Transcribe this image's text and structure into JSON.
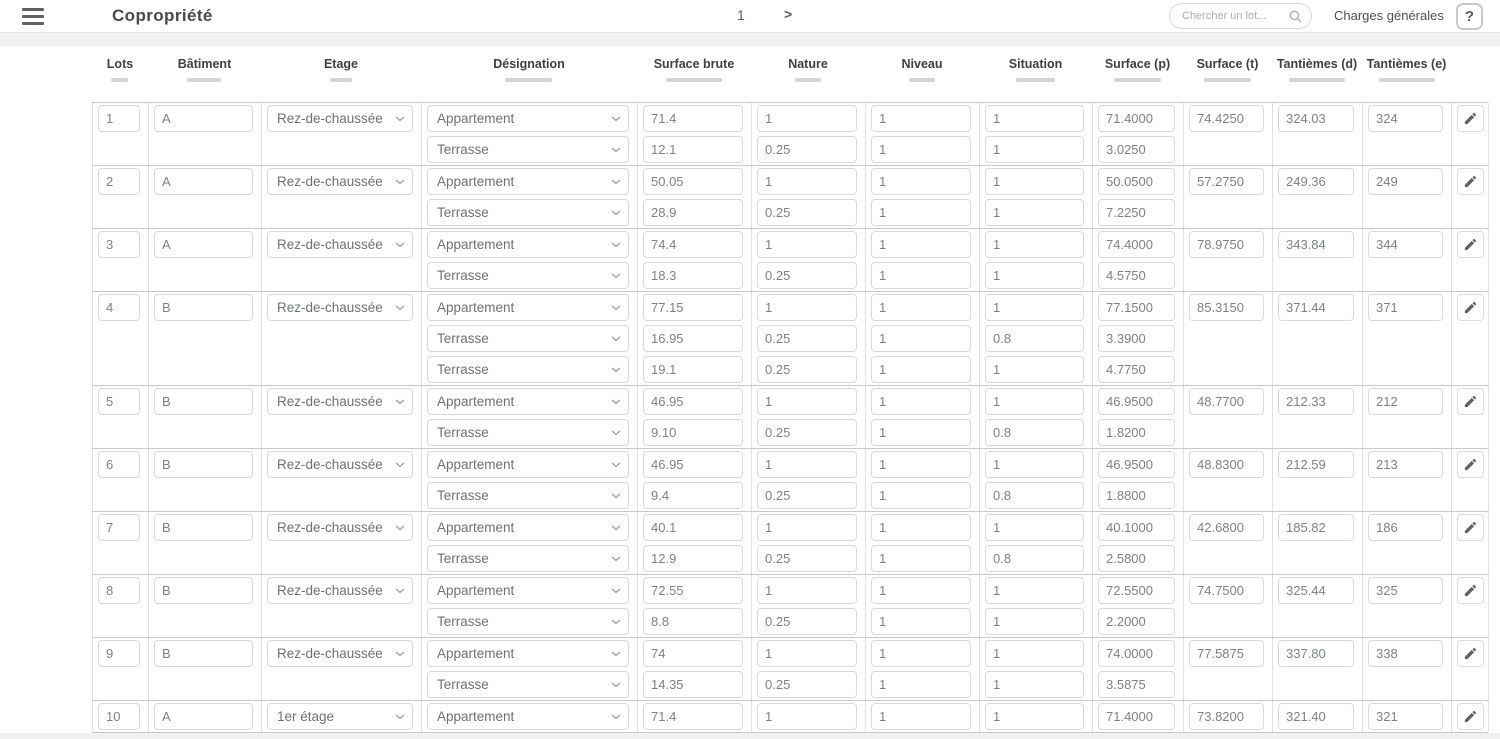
{
  "toolbar": {
    "title": "Copropriété",
    "page_number": "1",
    "next_page_label": ">",
    "search_placeholder": "Chercher un lot...",
    "charges_label": "Charges générales",
    "help_label": "?"
  },
  "table": {
    "headers": [
      {
        "label": "Lots"
      },
      {
        "label": "Bâtiment"
      },
      {
        "label": "Etage"
      },
      {
        "label": "Désignation"
      },
      {
        "label": "Surface brute"
      },
      {
        "label": "Nature"
      },
      {
        "label": "Niveau"
      },
      {
        "label": "Situation"
      },
      {
        "label": "Surface (p)"
      },
      {
        "label": "Surface (t)"
      },
      {
        "label": "Tantièmes (d)"
      },
      {
        "label": "Tantièmes (e)"
      }
    ],
    "rows": [
      {
        "lot": "1",
        "batiment": "A",
        "etage": "Rez-de-chaussée",
        "surface_t": "74.4250",
        "tantiemes_d": "324.03",
        "tantiemes_e": "324",
        "subrows": [
          {
            "designation": "Appartement",
            "surface_brute": "71.4",
            "nature": "1",
            "niveau": "1",
            "situation": "1",
            "surface_p": "71.4000"
          },
          {
            "designation": "Terrasse",
            "surface_brute": "12.1",
            "nature": "0.25",
            "niveau": "1",
            "situation": "1",
            "surface_p": "3.0250"
          }
        ]
      },
      {
        "lot": "2",
        "batiment": "A",
        "etage": "Rez-de-chaussée",
        "surface_t": "57.2750",
        "tantiemes_d": "249.36",
        "tantiemes_e": "249",
        "subrows": [
          {
            "designation": "Appartement",
            "surface_brute": "50.05",
            "nature": "1",
            "niveau": "1",
            "situation": "1",
            "surface_p": "50.0500"
          },
          {
            "designation": "Terrasse",
            "surface_brute": "28.9",
            "nature": "0.25",
            "niveau": "1",
            "situation": "1",
            "surface_p": "7.2250"
          }
        ]
      },
      {
        "lot": "3",
        "batiment": "A",
        "etage": "Rez-de-chaussée",
        "surface_t": "78.9750",
        "tantiemes_d": "343.84",
        "tantiemes_e": "344",
        "subrows": [
          {
            "designation": "Appartement",
            "surface_brute": "74.4",
            "nature": "1",
            "niveau": "1",
            "situation": "1",
            "surface_p": "74.4000"
          },
          {
            "designation": "Terrasse",
            "surface_brute": "18.3",
            "nature": "0.25",
            "niveau": "1",
            "situation": "1",
            "surface_p": "4.5750"
          }
        ]
      },
      {
        "lot": "4",
        "batiment": "B",
        "etage": "Rez-de-chaussée",
        "surface_t": "85.3150",
        "tantiemes_d": "371.44",
        "tantiemes_e": "371",
        "subrows": [
          {
            "designation": "Appartement",
            "surface_brute": "77.15",
            "nature": "1",
            "niveau": "1",
            "situation": "1",
            "surface_p": "77.1500"
          },
          {
            "designation": "Terrasse",
            "surface_brute": "16.95",
            "nature": "0.25",
            "niveau": "1",
            "situation": "0.8",
            "surface_p": "3.3900"
          },
          {
            "designation": "Terrasse",
            "surface_brute": "19.1",
            "nature": "0.25",
            "niveau": "1",
            "situation": "1",
            "surface_p": "4.7750"
          }
        ]
      },
      {
        "lot": "5",
        "batiment": "B",
        "etage": "Rez-de-chaussée",
        "surface_t": "48.7700",
        "tantiemes_d": "212.33",
        "tantiemes_e": "212",
        "subrows": [
          {
            "designation": "Appartement",
            "surface_brute": "46.95",
            "nature": "1",
            "niveau": "1",
            "situation": "1",
            "surface_p": "46.9500"
          },
          {
            "designation": "Terrasse",
            "surface_brute": "9.10",
            "nature": "0.25",
            "niveau": "1",
            "situation": "0.8",
            "surface_p": "1.8200"
          }
        ]
      },
      {
        "lot": "6",
        "batiment": "B",
        "etage": "Rez-de-chaussée",
        "surface_t": "48.8300",
        "tantiemes_d": "212.59",
        "tantiemes_e": "213",
        "subrows": [
          {
            "designation": "Appartement",
            "surface_brute": "46.95",
            "nature": "1",
            "niveau": "1",
            "situation": "1",
            "surface_p": "46.9500"
          },
          {
            "designation": "Terrasse",
            "surface_brute": "9.4",
            "nature": "0.25",
            "niveau": "1",
            "situation": "0.8",
            "surface_p": "1.8800"
          }
        ]
      },
      {
        "lot": "7",
        "batiment": "B",
        "etage": "Rez-de-chaussée",
        "surface_t": "42.6800",
        "tantiemes_d": "185.82",
        "tantiemes_e": "186",
        "subrows": [
          {
            "designation": "Appartement",
            "surface_brute": "40.1",
            "nature": "1",
            "niveau": "1",
            "situation": "1",
            "surface_p": "40.1000"
          },
          {
            "designation": "Terrasse",
            "surface_brute": "12.9",
            "nature": "0.25",
            "niveau": "1",
            "situation": "0.8",
            "surface_p": "2.5800"
          }
        ]
      },
      {
        "lot": "8",
        "batiment": "B",
        "etage": "Rez-de-chaussée",
        "surface_t": "74.7500",
        "tantiemes_d": "325.44",
        "tantiemes_e": "325",
        "subrows": [
          {
            "designation": "Appartement",
            "surface_brute": "72.55",
            "nature": "1",
            "niveau": "1",
            "situation": "1",
            "surface_p": "72.5500"
          },
          {
            "designation": "Terrasse",
            "surface_brute": "8.8",
            "nature": "0.25",
            "niveau": "1",
            "situation": "1",
            "surface_p": "2.2000"
          }
        ]
      },
      {
        "lot": "9",
        "batiment": "B",
        "etage": "Rez-de-chaussée",
        "surface_t": "77.5875",
        "tantiemes_d": "337.80",
        "tantiemes_e": "338",
        "subrows": [
          {
            "designation": "Appartement",
            "surface_brute": "74",
            "nature": "1",
            "niveau": "1",
            "situation": "1",
            "surface_p": "74.0000"
          },
          {
            "designation": "Terrasse",
            "surface_brute": "14.35",
            "nature": "0.25",
            "niveau": "1",
            "situation": "1",
            "surface_p": "3.5875"
          }
        ]
      },
      {
        "lot": "10",
        "batiment": "A",
        "etage": "1er étage",
        "surface_t": "73.8200",
        "tantiemes_d": "321.40",
        "tantiemes_e": "321",
        "subrows": [
          {
            "designation": "Appartement",
            "surface_brute": "71.4",
            "nature": "1",
            "niveau": "1",
            "situation": "1",
            "surface_p": "71.4000"
          }
        ]
      }
    ]
  }
}
